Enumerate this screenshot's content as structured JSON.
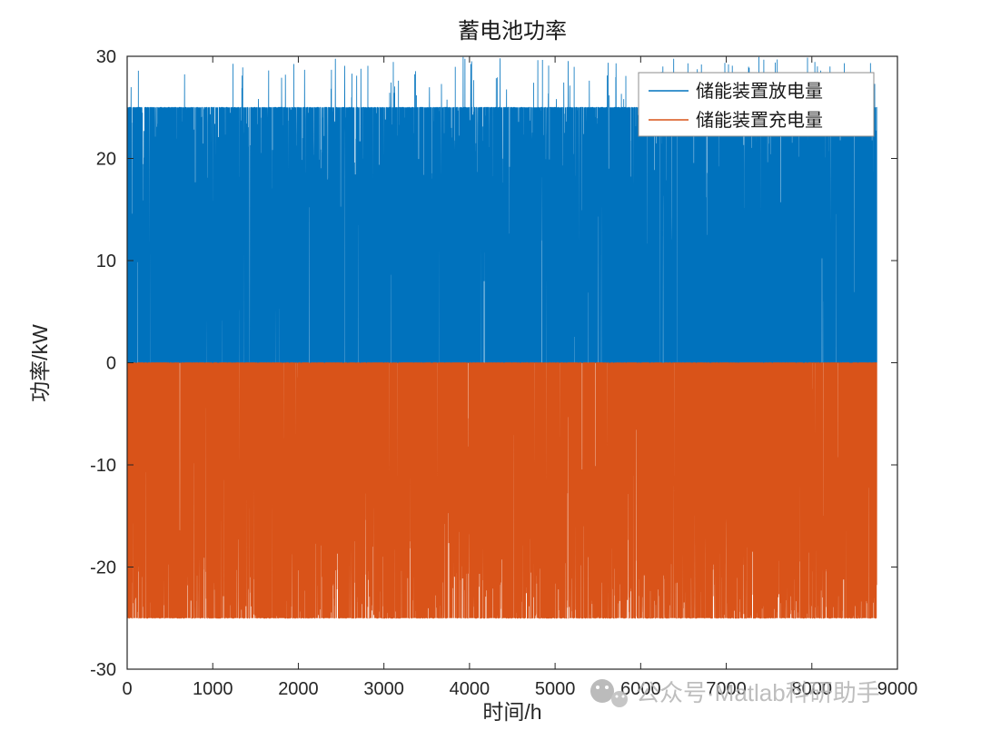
{
  "figure": {
    "title": "蓄电池功率",
    "xlabel": "时间/h",
    "ylabel": "功率/kW",
    "watermark": "公众号·Matlab科研助手"
  },
  "axes": {
    "xlim": [
      0,
      9000
    ],
    "ylim": [
      -30,
      30
    ],
    "x_ticks": [
      0,
      1000,
      2000,
      3000,
      4000,
      5000,
      6000,
      7000,
      8000,
      9000
    ],
    "y_ticks": [
      -30,
      -20,
      -10,
      0,
      10,
      20,
      30
    ],
    "axis_color": "#262626",
    "grid": "off"
  },
  "legend": {
    "position": "top-right-inside",
    "items": [
      {
        "label": "储能装置放电量",
        "color": "#0072BD"
      },
      {
        "label": "储能装置充电量",
        "color": "#D95319"
      }
    ]
  },
  "chart_data": {
    "type": "line",
    "title": "蓄电池功率",
    "xlabel": "时间/h",
    "ylabel": "功率/kW",
    "xlim": [
      0,
      9000
    ],
    "ylim": [
      -30,
      30
    ],
    "hours": 8760,
    "legend_position": "top-right-inside",
    "grid": "off",
    "series": [
      {
        "name": "储能装置放电量",
        "color": "#0072BD",
        "sign": 1,
        "cap": 25,
        "spike_max": 30,
        "active_prob": 0.55,
        "spike_prob": 0.012,
        "seed": 421337
      },
      {
        "name": "储能装置充电量",
        "color": "#D95319",
        "sign": -1,
        "cap": 25,
        "spike_max": 25,
        "active_prob": 0.55,
        "spike_prob": 0,
        "seed": 90210
      }
    ],
    "note": "8760 hourly battery power values; discharge (blue) spikes 0 to 25 kW capped at 25 with occasional spikes reaching 30; charge (orange) shown negative, 0 to -25 kW capped at -25"
  }
}
